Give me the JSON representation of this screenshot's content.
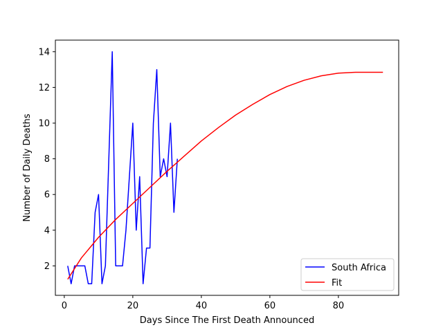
{
  "chart_data": {
    "type": "line",
    "title": "",
    "xlabel": "Days Since The First Death Announced",
    "ylabel": "Number of Daily Deaths",
    "xlim": [
      -2.6,
      97.6
    ],
    "ylim": [
      0.35,
      14.65
    ],
    "xticks": [
      0,
      20,
      40,
      60,
      80
    ],
    "yticks": [
      2,
      4,
      6,
      8,
      10,
      12,
      14
    ],
    "grid": false,
    "legend": {
      "position": "lower right",
      "entries": [
        "South Africa",
        "Fit"
      ]
    },
    "series": [
      {
        "name": "South Africa",
        "color": "#0000ff",
        "x": [
          1,
          2,
          3,
          4,
          5,
          6,
          7,
          8,
          9,
          10,
          11,
          12,
          13,
          14,
          15,
          16,
          17,
          18,
          19,
          20,
          21,
          22,
          23,
          24,
          25,
          26,
          27,
          28,
          29,
          30,
          31,
          32,
          33
        ],
        "y": [
          2,
          1,
          2,
          2,
          2,
          2,
          1,
          1,
          5,
          6,
          1,
          2,
          8,
          14,
          2,
          2,
          2,
          4,
          7,
          10,
          4,
          7,
          1,
          3,
          3,
          10,
          13,
          7,
          8,
          7,
          10,
          5,
          8
        ]
      },
      {
        "name": "Fit",
        "color": "#ff0000",
        "x": [
          1,
          5,
          10,
          15,
          20,
          25,
          30,
          35,
          40,
          45,
          50,
          55,
          60,
          65,
          70,
          75,
          80,
          85,
          90,
          93
        ],
        "y": [
          1.25,
          2.45,
          3.6,
          4.6,
          5.5,
          6.4,
          7.3,
          8.15,
          9.0,
          9.75,
          10.45,
          11.05,
          11.6,
          12.05,
          12.4,
          12.65,
          12.8,
          12.85,
          12.85,
          12.85
        ]
      }
    ]
  }
}
